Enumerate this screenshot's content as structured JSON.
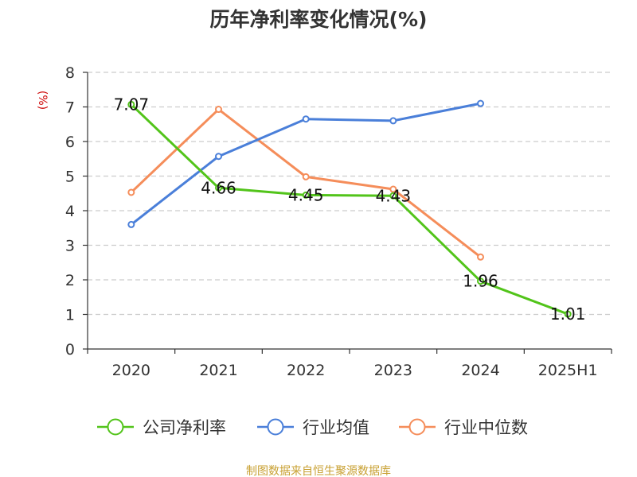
{
  "chart_data": {
    "type": "line",
    "title": "历年净利率变化情况(%)",
    "ylabel": "(%)",
    "categories": [
      "2020",
      "2021",
      "2022",
      "2023",
      "2024",
      "2025H1"
    ],
    "ylim": [
      0,
      8
    ],
    "yticks": [
      0,
      1,
      2,
      3,
      4,
      5,
      6,
      7,
      8
    ],
    "grid": true,
    "legend_position": "bottom",
    "series": [
      {
        "name": "公司净利率",
        "color": "#52c41a",
        "values": [
          7.07,
          4.66,
          4.45,
          4.43,
          1.96,
          1.01
        ],
        "show_labels": true
      },
      {
        "name": "行业均值",
        "color": "#4a7fd9",
        "values": [
          3.6,
          5.57,
          6.65,
          6.6,
          7.1,
          null
        ],
        "show_labels": false
      },
      {
        "name": "行业中位数",
        "color": "#f58d5a",
        "values": [
          4.53,
          6.93,
          4.98,
          4.62,
          2.66,
          null
        ],
        "show_labels": false
      }
    ]
  },
  "source_text": "制图数据来自恒生聚源数据库",
  "colors": {
    "unit": "#cc0000",
    "source": "#c8a032",
    "axis": "#333333",
    "grid": "#cccccc"
  }
}
